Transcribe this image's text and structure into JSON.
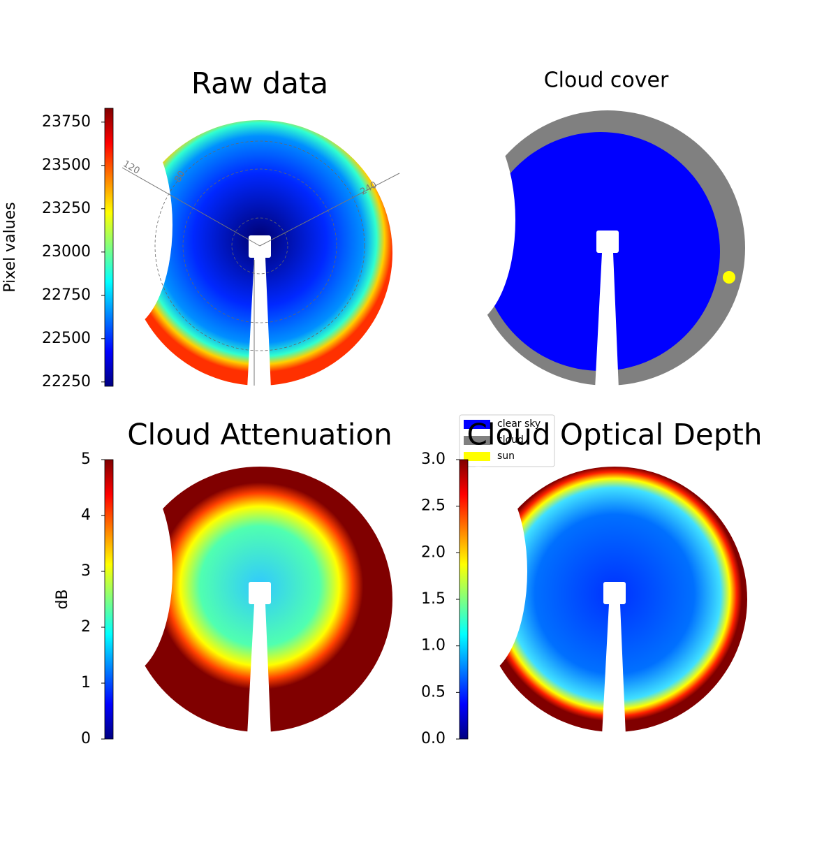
{
  "chart_data": [
    {
      "type": "heatmap",
      "title": "Raw data",
      "colorbar": {
        "label": "Pixel values",
        "colormap": "jet",
        "ylim": [
          22225,
          23830
        ],
        "yticks": [
          22250,
          22500,
          22750,
          23000,
          23250,
          23500,
          23750
        ]
      },
      "annotations": [
        "120",
        "80",
        "240"
      ]
    },
    {
      "type": "heatmap",
      "title": "Cloud cover",
      "legend": [
        {
          "name": "clear sky",
          "color": "#0000ff"
        },
        {
          "name": "cloud",
          "color": "#808080"
        },
        {
          "name": "sun",
          "color": "#ffff00"
        }
      ]
    },
    {
      "type": "heatmap",
      "title": "Cloud Attenuation",
      "colorbar": {
        "label": "dB",
        "colormap": "jet",
        "ylim": [
          0,
          5
        ],
        "yticks": [
          0,
          1,
          2,
          3,
          4,
          5
        ]
      }
    },
    {
      "type": "heatmap",
      "title": "Cloud Optical Depth",
      "colorbar": {
        "colormap": "jet",
        "ylim": [
          0,
          3
        ],
        "yticks": [
          {
            "value": 0,
            "label": "0.0"
          },
          {
            "value": 0.5,
            "label": "0.5"
          },
          {
            "value": 1,
            "label": "1.0"
          },
          {
            "value": 1.5,
            "label": "1.5"
          },
          {
            "value": 2,
            "label": "2.0"
          },
          {
            "value": 2.5,
            "label": "2.5"
          },
          {
            "value": 3,
            "label": "3.0"
          }
        ]
      }
    }
  ]
}
